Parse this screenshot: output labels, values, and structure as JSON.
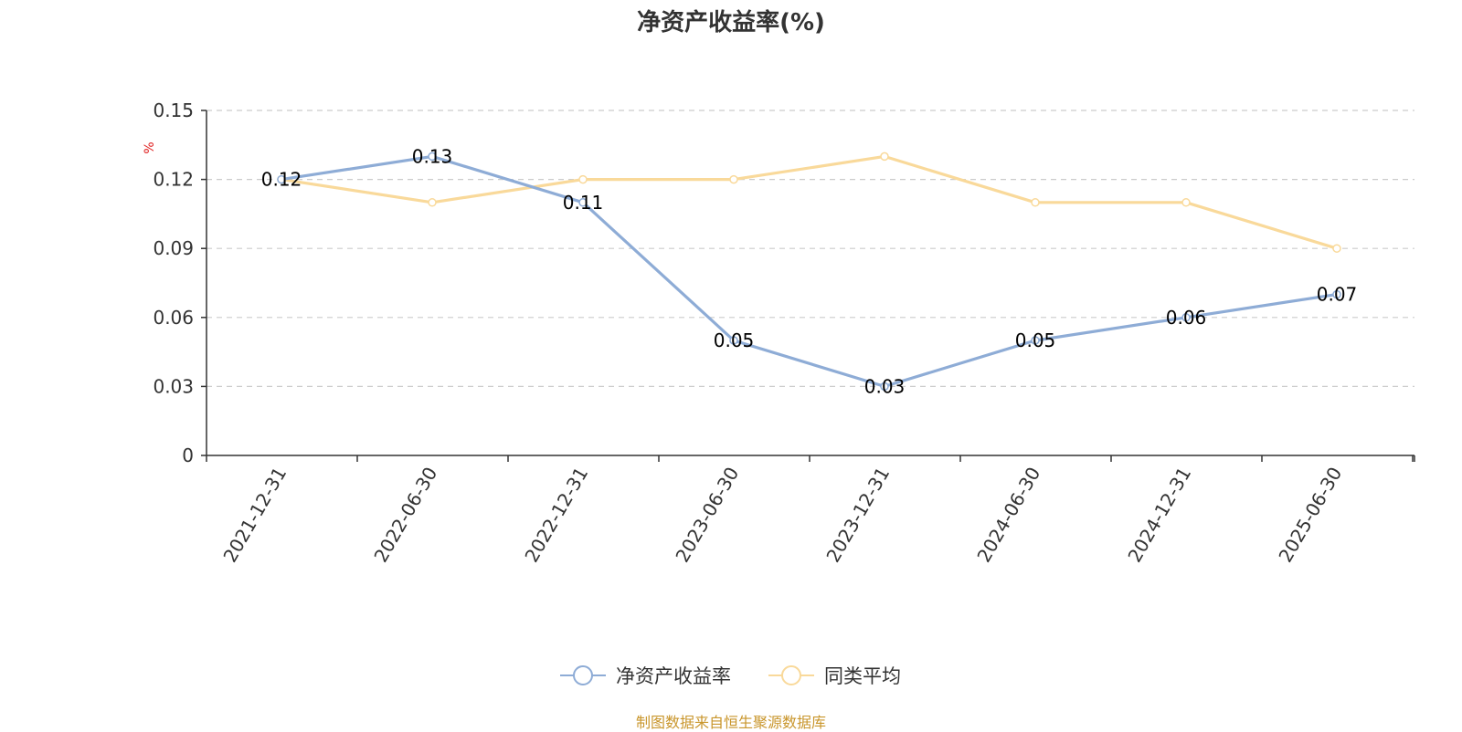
{
  "chart_data": {
    "type": "line",
    "title": "净资产收益率(%)",
    "unit": "%",
    "categories": [
      "2021-12-31",
      "2022-06-30",
      "2022-12-31",
      "2023-06-30",
      "2023-12-31",
      "2024-06-30",
      "2024-12-31",
      "2025-06-30"
    ],
    "yticks": [
      "0",
      "0.03",
      "0.06",
      "0.09",
      "0.12",
      "0.15"
    ],
    "ylim": [
      0,
      0.15
    ],
    "grid": true,
    "legend_position": "bottom-center",
    "series": [
      {
        "name": "净资产收益率",
        "color": "#8eacd6",
        "values": [
          0.12,
          0.13,
          0.11,
          0.05,
          0.03,
          0.05,
          0.06,
          0.07
        ],
        "labels": [
          "0.12",
          "0.13",
          "0.11",
          "0.05",
          "0.03",
          "0.05",
          "0.06",
          "0.07"
        ]
      },
      {
        "name": "同类平均",
        "color": "#f9d99a",
        "values": [
          0.12,
          0.11,
          0.12,
          0.12,
          0.13,
          0.11,
          0.11,
          0.09
        ]
      }
    ]
  },
  "source_note": "制图数据来自恒生聚源数据库"
}
